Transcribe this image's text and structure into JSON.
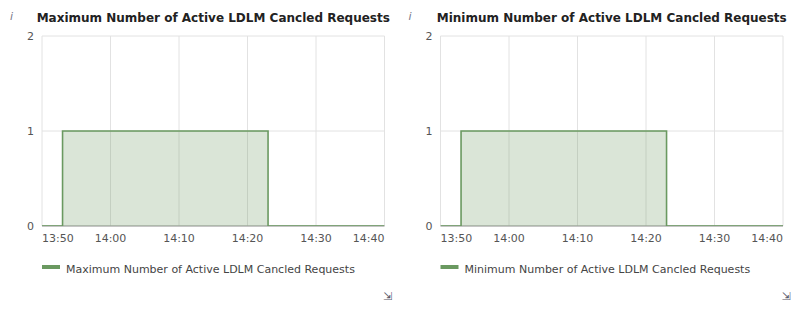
{
  "chart_data": [
    {
      "type": "area",
      "title": "Maximum Number of Active LDLM Cancled Requests",
      "x": [
        0,
        3,
        3,
        33,
        33,
        50
      ],
      "series": [
        {
          "name": "Maximum Number of Active LDLM Cancled Requests",
          "color": "#6a9960",
          "values": [
            0,
            0,
            1,
            1,
            0,
            0
          ]
        }
      ],
      "xlim": [
        0,
        50
      ],
      "xticks": [
        {
          "value": 0,
          "label": "13:50"
        },
        {
          "value": 10,
          "label": "14:00"
        },
        {
          "value": 20,
          "label": "14:10"
        },
        {
          "value": 30,
          "label": "14:20"
        },
        {
          "value": 40,
          "label": "14:30"
        },
        {
          "value": 50,
          "label": "14:40"
        }
      ],
      "ylim": [
        0,
        2
      ],
      "yticks": [
        0,
        1,
        2
      ],
      "grid": true,
      "legend": "bottom",
      "annotations": [
        "i",
        "⇲"
      ]
    },
    {
      "type": "area",
      "title": "Minimum Number of Active LDLM Cancled Requests",
      "x": [
        0,
        3,
        3,
        33,
        33,
        50
      ],
      "series": [
        {
          "name": "Minimum Number of Active LDLM Cancled Requests",
          "color": "#6a9960",
          "values": [
            0,
            0,
            1,
            1,
            0,
            0
          ]
        }
      ],
      "xlim": [
        0,
        50
      ],
      "xticks": [
        {
          "value": 0,
          "label": "13:50"
        },
        {
          "value": 10,
          "label": "14:00"
        },
        {
          "value": 20,
          "label": "14:10"
        },
        {
          "value": 30,
          "label": "14:20"
        },
        {
          "value": 40,
          "label": "14:30"
        },
        {
          "value": 50,
          "label": "14:40"
        }
      ],
      "ylim": [
        0,
        2
      ],
      "yticks": [
        0,
        1,
        2
      ],
      "grid": true,
      "legend": "bottom",
      "annotations": [
        "i",
        "⇲"
      ]
    }
  ]
}
